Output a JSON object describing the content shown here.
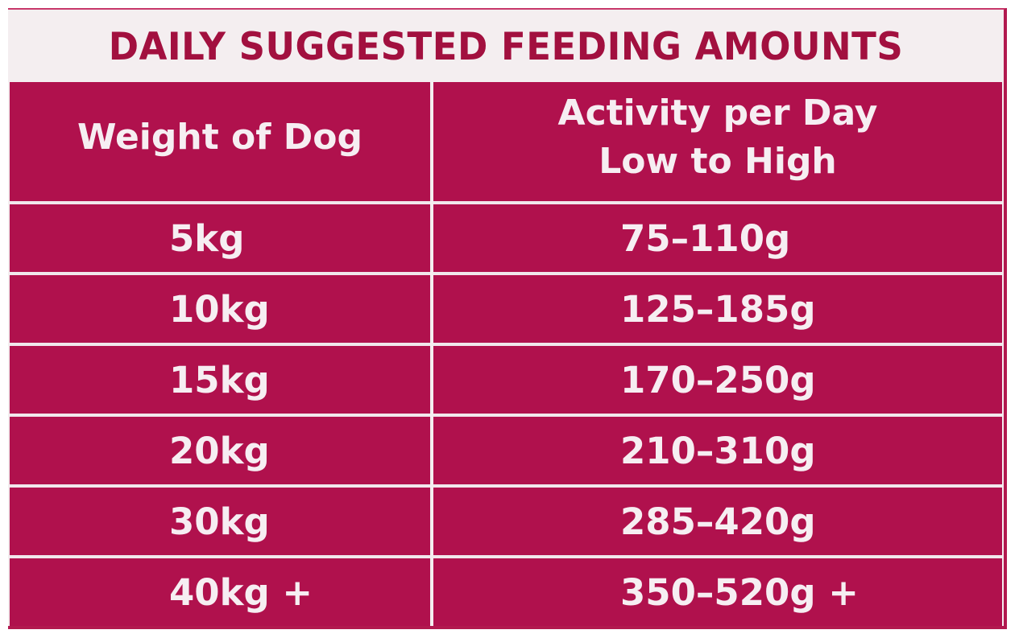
{
  "title": "DAILY SUGGESTED FEEDING AMOUNTS",
  "columns": {
    "weight": "Weight of Dog",
    "activity_line1": "Activity per Day",
    "activity_line2": "Low to High"
  },
  "rows": [
    {
      "weight": "5kg",
      "amount": "75–110g"
    },
    {
      "weight": "10kg",
      "amount": "125–185g"
    },
    {
      "weight": "15kg",
      "amount": "170–250g"
    },
    {
      "weight": "20kg",
      "amount": "210–310g"
    },
    {
      "weight": "30kg",
      "amount": "285–420g"
    },
    {
      "weight": "40kg +",
      "amount": "350–520g +"
    }
  ],
  "colors": {
    "cell_background": "#b0114d",
    "title_text": "#a2103f",
    "card_background": "#f4eef0"
  }
}
